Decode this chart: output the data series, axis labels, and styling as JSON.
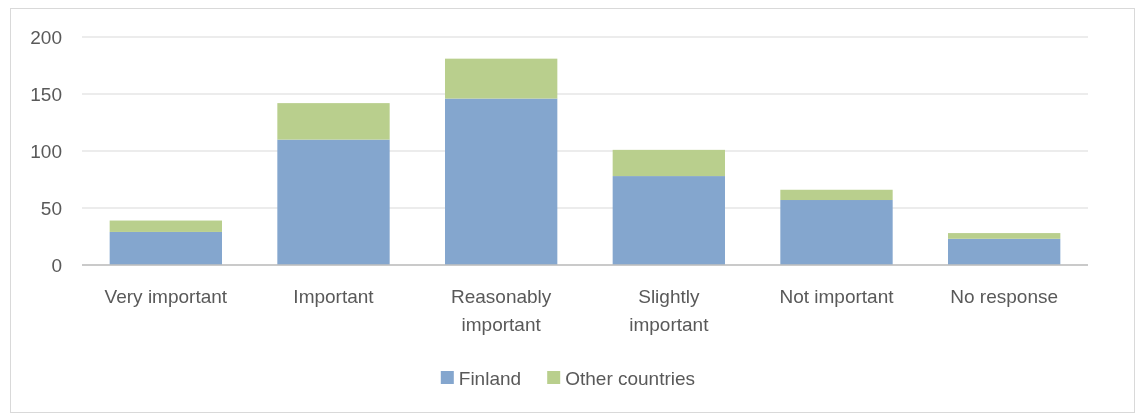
{
  "chart_data": {
    "type": "bar",
    "stacked": true,
    "categories": [
      "Very important",
      "Important",
      "Reasonably important",
      "Slightly important",
      "Not important",
      "No response"
    ],
    "series": [
      {
        "name": "Finland",
        "color": "#84a6ce",
        "values": [
          29,
          110,
          146,
          78,
          57,
          23
        ]
      },
      {
        "name": "Other countries",
        "color": "#b9cf8d",
        "values": [
          10,
          32,
          35,
          23,
          9,
          5
        ]
      }
    ],
    "ylim": [
      0,
      200
    ],
    "yticks": [
      0,
      50,
      100,
      150,
      200
    ],
    "grid": "y",
    "legend": "bottom"
  }
}
